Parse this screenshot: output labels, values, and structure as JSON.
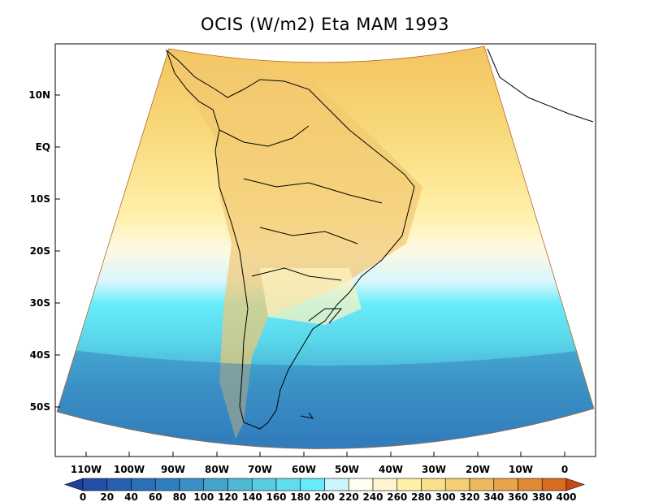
{
  "title": "OCIS (W/m2) Eta MAM 1993",
  "map": {
    "lat_labels": [
      "10N",
      "EQ",
      "10S",
      "20S",
      "30S",
      "40S",
      "50S"
    ],
    "lon_labels": [
      "110W",
      "100W",
      "90W",
      "80W",
      "70W",
      "60W",
      "50W",
      "40W",
      "30W",
      "20W",
      "10W",
      "0"
    ]
  },
  "colorbar": {
    "labels": [
      "0",
      "20",
      "40",
      "60",
      "80",
      "100",
      "120",
      "140",
      "160",
      "180",
      "200",
      "220",
      "240",
      "260",
      "280",
      "300",
      "320",
      "340",
      "360",
      "380",
      "400"
    ],
    "colors": [
      "#1f3f9a",
      "#224fa8",
      "#2660b0",
      "#2b70b8",
      "#3080bf",
      "#3a90c6",
      "#45a4cc",
      "#4fb8d4",
      "#58cce0",
      "#5fdcee",
      "#66ecfa",
      "#ccf4ff",
      "#fffff0",
      "#fff5d0",
      "#fff0a8",
      "#fbe08c",
      "#f5cf72",
      "#eeb95c",
      "#e8a448",
      "#e08a34",
      "#d86c20",
      "#c94a10"
    ]
  }
}
